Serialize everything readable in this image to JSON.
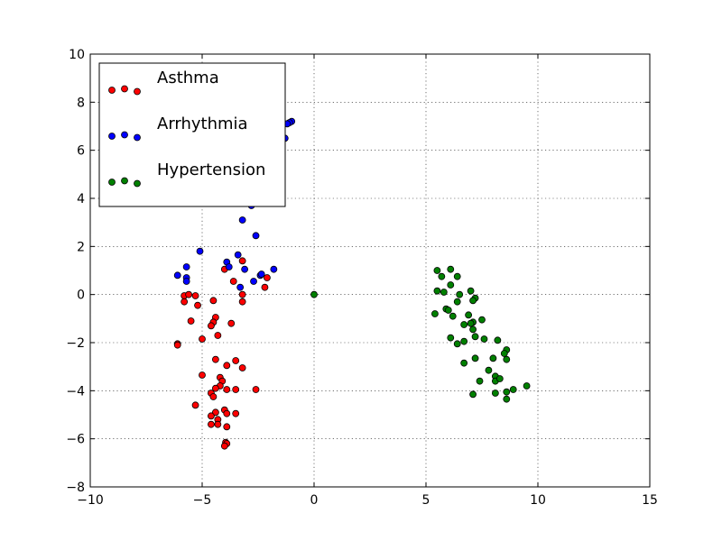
{
  "chart_data": {
    "type": "scatter",
    "title": "",
    "xlabel": "",
    "ylabel": "",
    "xlim": [
      -10,
      15
    ],
    "ylim": [
      -8,
      10
    ],
    "xticks": [
      -10,
      -5,
      0,
      5,
      10,
      15
    ],
    "yticks": [
      -8,
      -6,
      -4,
      -2,
      0,
      2,
      4,
      6,
      8,
      10
    ],
    "xtick_labels": [
      "−10",
      "−5",
      "0",
      "5",
      "10",
      "15"
    ],
    "ytick_labels": [
      "−8",
      "−6",
      "−4",
      "−2",
      "0",
      "2",
      "4",
      "6",
      "8",
      "10"
    ],
    "grid": true,
    "legend_position": "top-left",
    "series": [
      {
        "name": "Asthma",
        "color": "#ff0000",
        "points": [
          [
            -3.2,
            1.4
          ],
          [
            -4.0,
            1.05
          ],
          [
            -3.6,
            0.55
          ],
          [
            -3.2,
            0.0
          ],
          [
            -3.2,
            -0.3
          ],
          [
            -2.1,
            0.7
          ],
          [
            -2.2,
            0.3
          ],
          [
            -5.8,
            -0.05
          ],
          [
            -5.6,
            0.0
          ],
          [
            -5.3,
            -0.05
          ],
          [
            -5.8,
            -0.3
          ],
          [
            -5.2,
            -0.45
          ],
          [
            -4.5,
            -0.25
          ],
          [
            -4.4,
            -0.95
          ],
          [
            -4.5,
            -1.15
          ],
          [
            -4.6,
            -1.3
          ],
          [
            -5.5,
            -1.1
          ],
          [
            -3.7,
            -1.2
          ],
          [
            -4.3,
            -1.7
          ],
          [
            -5.0,
            -1.85
          ],
          [
            -6.1,
            -2.05
          ],
          [
            -6.1,
            -2.1
          ],
          [
            -4.4,
            -2.7
          ],
          [
            -3.9,
            -2.95
          ],
          [
            -3.5,
            -2.75
          ],
          [
            -3.2,
            -3.05
          ],
          [
            -5.0,
            -3.35
          ],
          [
            -4.2,
            -3.45
          ],
          [
            -4.1,
            -3.6
          ],
          [
            -4.2,
            -3.8
          ],
          [
            -3.9,
            -3.95
          ],
          [
            -4.4,
            -3.9
          ],
          [
            -3.5,
            -3.95
          ],
          [
            -2.6,
            -3.95
          ],
          [
            -4.6,
            -4.1
          ],
          [
            -4.5,
            -4.25
          ],
          [
            -5.3,
            -4.6
          ],
          [
            -4.4,
            -4.9
          ],
          [
            -4.0,
            -4.8
          ],
          [
            -3.9,
            -4.95
          ],
          [
            -3.5,
            -4.95
          ],
          [
            -4.6,
            -5.05
          ],
          [
            -4.3,
            -5.2
          ],
          [
            -4.3,
            -5.4
          ],
          [
            -4.6,
            -5.4
          ],
          [
            -3.9,
            -5.5
          ],
          [
            -3.95,
            -6.15
          ],
          [
            -3.9,
            -6.2
          ],
          [
            -4.0,
            -6.3
          ]
        ]
      },
      {
        "name": "Arrhythmia",
        "color": "#0000ff",
        "points": [
          [
            -1.0,
            7.2
          ],
          [
            -1.1,
            7.15
          ],
          [
            -1.2,
            7.1
          ],
          [
            -1.3,
            6.5
          ],
          [
            -2.8,
            3.7
          ],
          [
            -3.2,
            3.1
          ],
          [
            -2.6,
            2.45
          ],
          [
            -5.1,
            1.8
          ],
          [
            -3.4,
            1.65
          ],
          [
            -3.9,
            1.35
          ],
          [
            -3.8,
            1.15
          ],
          [
            -3.1,
            1.05
          ],
          [
            -1.8,
            1.05
          ],
          [
            -5.7,
            1.15
          ],
          [
            -2.4,
            0.8
          ],
          [
            -2.35,
            0.85
          ],
          [
            -2.7,
            0.55
          ],
          [
            -3.3,
            0.3
          ],
          [
            -6.1,
            0.8
          ],
          [
            -5.7,
            0.7
          ],
          [
            -5.7,
            0.55
          ]
        ]
      },
      {
        "name": "Hypertension",
        "color": "#008000",
        "points": [
          [
            0.0,
            0.0
          ],
          [
            5.5,
            1.0
          ],
          [
            6.1,
            1.05
          ],
          [
            5.7,
            0.75
          ],
          [
            6.4,
            0.75
          ],
          [
            6.1,
            0.4
          ],
          [
            5.5,
            0.15
          ],
          [
            5.8,
            0.1
          ],
          [
            6.5,
            0.0
          ],
          [
            7.0,
            0.15
          ],
          [
            7.2,
            -0.15
          ],
          [
            7.1,
            -0.25
          ],
          [
            6.4,
            -0.3
          ],
          [
            5.4,
            -0.8
          ],
          [
            5.9,
            -0.6
          ],
          [
            6.0,
            -0.65
          ],
          [
            6.2,
            -0.9
          ],
          [
            6.9,
            -0.85
          ],
          [
            7.1,
            -1.15
          ],
          [
            7.0,
            -1.2
          ],
          [
            6.7,
            -1.25
          ],
          [
            7.5,
            -1.05
          ],
          [
            7.1,
            -1.45
          ],
          [
            7.2,
            -1.75
          ],
          [
            6.1,
            -1.8
          ],
          [
            6.7,
            -1.95
          ],
          [
            6.4,
            -2.05
          ],
          [
            7.6,
            -1.85
          ],
          [
            8.2,
            -1.9
          ],
          [
            8.6,
            -2.3
          ],
          [
            8.5,
            -2.45
          ],
          [
            8.6,
            -2.7
          ],
          [
            8.0,
            -2.65
          ],
          [
            7.2,
            -2.65
          ],
          [
            6.7,
            -2.85
          ],
          [
            7.8,
            -3.15
          ],
          [
            8.1,
            -3.4
          ],
          [
            8.1,
            -3.6
          ],
          [
            8.3,
            -3.5
          ],
          [
            7.4,
            -3.6
          ],
          [
            9.5,
            -3.8
          ],
          [
            8.9,
            -3.95
          ],
          [
            8.6,
            -4.05
          ],
          [
            8.1,
            -4.1
          ],
          [
            7.1,
            -4.15
          ],
          [
            8.6,
            -4.35
          ]
        ]
      }
    ]
  }
}
